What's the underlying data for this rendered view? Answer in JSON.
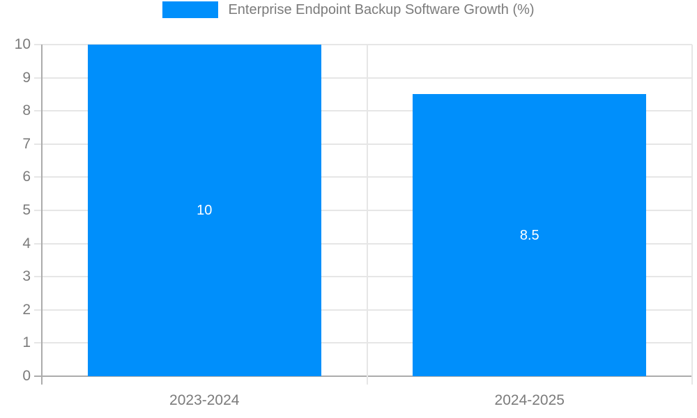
{
  "chart_data": {
    "type": "bar",
    "title": "Enterprise Endpoint Backup Software Growth (%)",
    "categories": [
      "2023-2024",
      "2024-2025"
    ],
    "values": [
      10,
      8.5
    ],
    "bar_labels": [
      "10",
      "8.5"
    ],
    "ytick_labels": [
      "0",
      "1",
      "2",
      "3",
      "4",
      "5",
      "6",
      "7",
      "8",
      "9",
      "10"
    ],
    "yticks": [
      0,
      1,
      2,
      3,
      4,
      5,
      6,
      7,
      8,
      9,
      10
    ],
    "ylim": [
      0,
      10
    ],
    "xlabel": "",
    "ylabel": "",
    "grid": "on",
    "legend_position": "top"
  },
  "colors": {
    "bar": "#008FFB",
    "grid_light": "#E6E6E6",
    "axis_line": "#ACACAC",
    "text_muted": "#7B7B7B",
    "bar_label_text": "#FFFFFF",
    "background": "#FFFFFF"
  }
}
